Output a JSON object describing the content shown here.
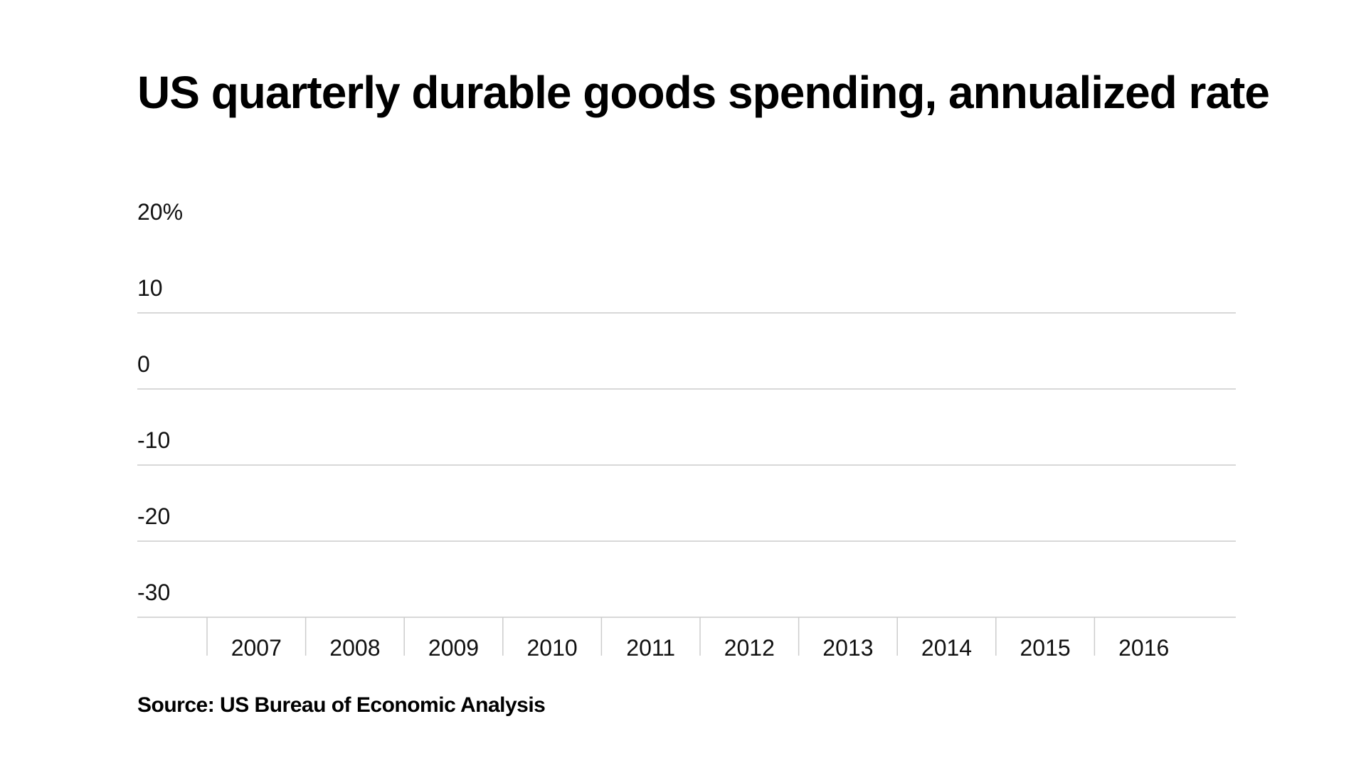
{
  "chart_data": {
    "type": "line",
    "title": "US quarterly durable goods spending, annualized rate",
    "source": "Source: US Bureau of Economic Analysis",
    "x_categories": [
      "2007",
      "2008",
      "2009",
      "2010",
      "2011",
      "2012",
      "2013",
      "2014",
      "2015",
      "2016"
    ],
    "y_ticks": [
      {
        "value": 20,
        "label": "20%"
      },
      {
        "value": 10,
        "label": "10"
      },
      {
        "value": 0,
        "label": "0"
      },
      {
        "value": -10,
        "label": "-10"
      },
      {
        "value": -20,
        "label": "-20"
      },
      {
        "value": -30,
        "label": "-30"
      }
    ],
    "ylim": [
      -30,
      20
    ],
    "xlabel": "",
    "ylabel": "",
    "grid": true,
    "gridline_color": "#cccccc",
    "series": []
  }
}
